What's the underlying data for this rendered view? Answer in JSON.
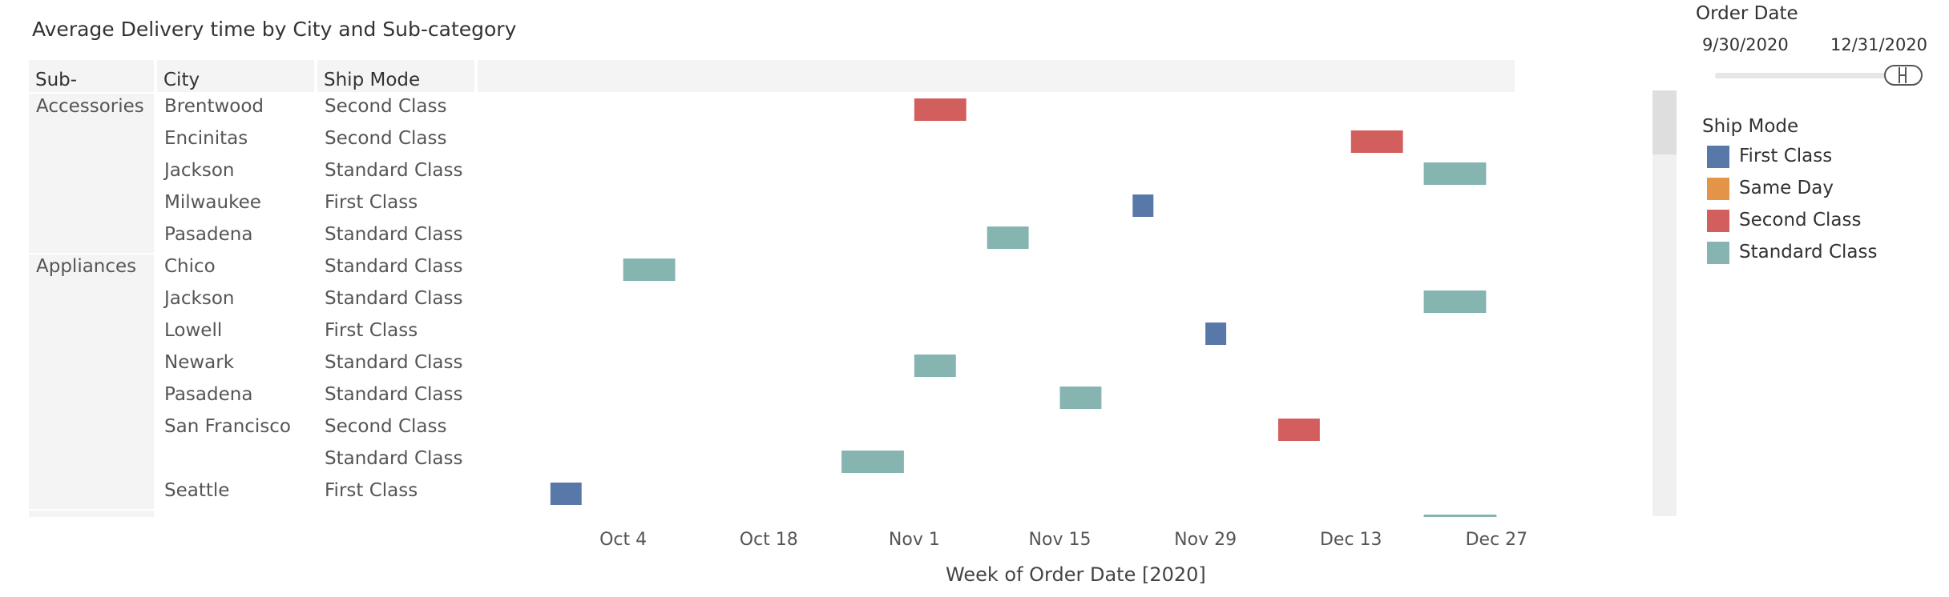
{
  "title": "Average Delivery time by City and Sub-category",
  "columns": {
    "subcategory": "Sub-Category",
    "city": "City",
    "ship_mode": "Ship Mode"
  },
  "filter": {
    "title": "Order Date",
    "start": "9/30/2020",
    "end": "12/31/2020"
  },
  "legend": {
    "title": "Ship Mode",
    "items": [
      {
        "label": "First Class",
        "color": "#5778a8"
      },
      {
        "label": "Same Day",
        "color": "#e49446"
      },
      {
        "label": "Second Class",
        "color": "#d35e5e"
      },
      {
        "label": "Standard Class",
        "color": "#86b5b1"
      }
    ]
  },
  "chart_data": {
    "type": "gantt",
    "title": "Average Delivery time by City and Sub-category",
    "xlabel": "Week of Order Date [2020]",
    "x_ticks": [
      "Oct 4",
      "Oct 18",
      "Nov 1",
      "Nov 15",
      "Nov 29",
      "Dec 13",
      "Dec 27"
    ],
    "xlim": [
      "2020-09-20",
      "2021-01-11"
    ],
    "rows": [
      {
        "subcategory": "Accessories",
        "city": "Brentwood",
        "ship_mode": "Second Class",
        "start": "2020-11-01",
        "end": "2020-11-06"
      },
      {
        "subcategory": "",
        "city": "Encinitas",
        "ship_mode": "Second Class",
        "start": "2020-12-13",
        "end": "2020-12-18"
      },
      {
        "subcategory": "",
        "city": "Jackson",
        "ship_mode": "Standard Class",
        "start": "2020-12-20",
        "end": "2020-12-26"
      },
      {
        "subcategory": "",
        "city": "Milwaukee",
        "ship_mode": "First Class",
        "start": "2020-11-22",
        "end": "2020-11-24"
      },
      {
        "subcategory": "",
        "city": "Pasadena",
        "ship_mode": "Standard Class",
        "start": "2020-11-08",
        "end": "2020-11-12"
      },
      {
        "subcategory": "Appliances",
        "city": "Chico",
        "ship_mode": "Standard Class",
        "start": "2020-10-04",
        "end": "2020-10-09"
      },
      {
        "subcategory": "",
        "city": "Jackson",
        "ship_mode": "Standard Class",
        "start": "2020-12-20",
        "end": "2020-12-26"
      },
      {
        "subcategory": "",
        "city": "Lowell",
        "ship_mode": "First Class",
        "start": "2020-11-29",
        "end": "2020-12-01"
      },
      {
        "subcategory": "",
        "city": "Newark",
        "ship_mode": "Standard Class",
        "start": "2020-11-01",
        "end": "2020-11-05"
      },
      {
        "subcategory": "",
        "city": "Pasadena",
        "ship_mode": "Standard Class",
        "start": "2020-11-15",
        "end": "2020-11-19"
      },
      {
        "subcategory": "",
        "city": "San Francisco",
        "ship_mode": "Second Class",
        "start": "2020-12-06",
        "end": "2020-12-10"
      },
      {
        "subcategory": "",
        "city": "",
        "ship_mode": "Standard Class",
        "start": "2020-10-25",
        "end": "2020-10-31"
      },
      {
        "subcategory": "",
        "city": "Seattle",
        "ship_mode": "First Class",
        "start": "2020-09-27",
        "end": "2020-09-30"
      }
    ],
    "partial_row_bar": {
      "ship_mode": "Standard Class",
      "start": "2020-12-20",
      "end": "2020-12-27"
    }
  }
}
